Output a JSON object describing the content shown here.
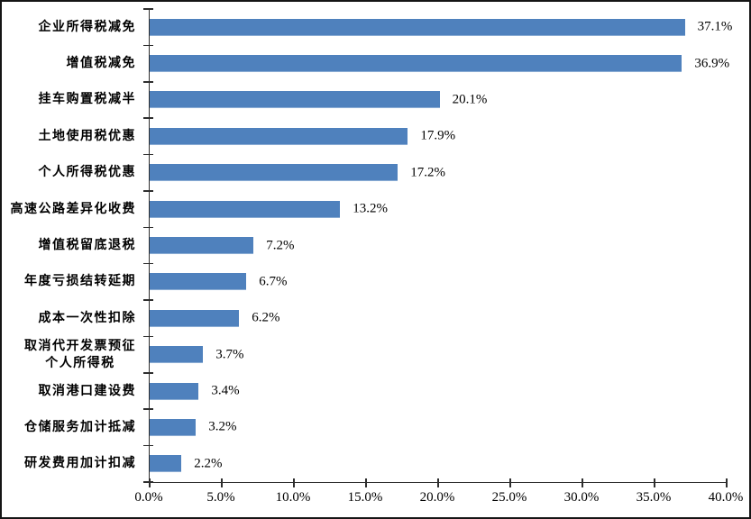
{
  "frame": {
    "background": "#ffffff",
    "border_color": "#151515"
  },
  "chart_data": {
    "type": "bar",
    "orientation": "horizontal",
    "title": "",
    "xlabel": "",
    "ylabel": "",
    "xlim": [
      0,
      40
    ],
    "x_tick_step": 5,
    "grid": false,
    "legend": false,
    "bar_color": "#4f81bd",
    "axis_color": "#2e2e2e",
    "text_color": "#000000",
    "categories": [
      "企业所得税减免",
      "增值税减免",
      "挂车购置税减半",
      "土地使用税优惠",
      "个人所得税优惠",
      "高速公路差异化收费",
      "增值税留底退税",
      "年度亏损结转延期",
      "成本一次性扣除",
      "取消代开发票预征\n个人所得税",
      "取消港口建设费",
      "仓储服务加计抵减",
      "研发费用加计扣减"
    ],
    "values": [
      37.1,
      36.9,
      20.1,
      17.9,
      17.2,
      13.2,
      7.2,
      6.7,
      6.2,
      3.7,
      3.4,
      3.2,
      2.2
    ],
    "value_labels": [
      "37.1%",
      "36.9%",
      "20.1%",
      "17.9%",
      "17.2%",
      "13.2%",
      "7.2%",
      "6.7%",
      "6.2%",
      "3.7%",
      "3.4%",
      "3.2%",
      "2.2%"
    ],
    "x_tick_labels": [
      "0.0%",
      "5.0%",
      "10.0%",
      "15.0%",
      "20.0%",
      "25.0%",
      "30.0%",
      "35.0%",
      "40.0%"
    ]
  }
}
